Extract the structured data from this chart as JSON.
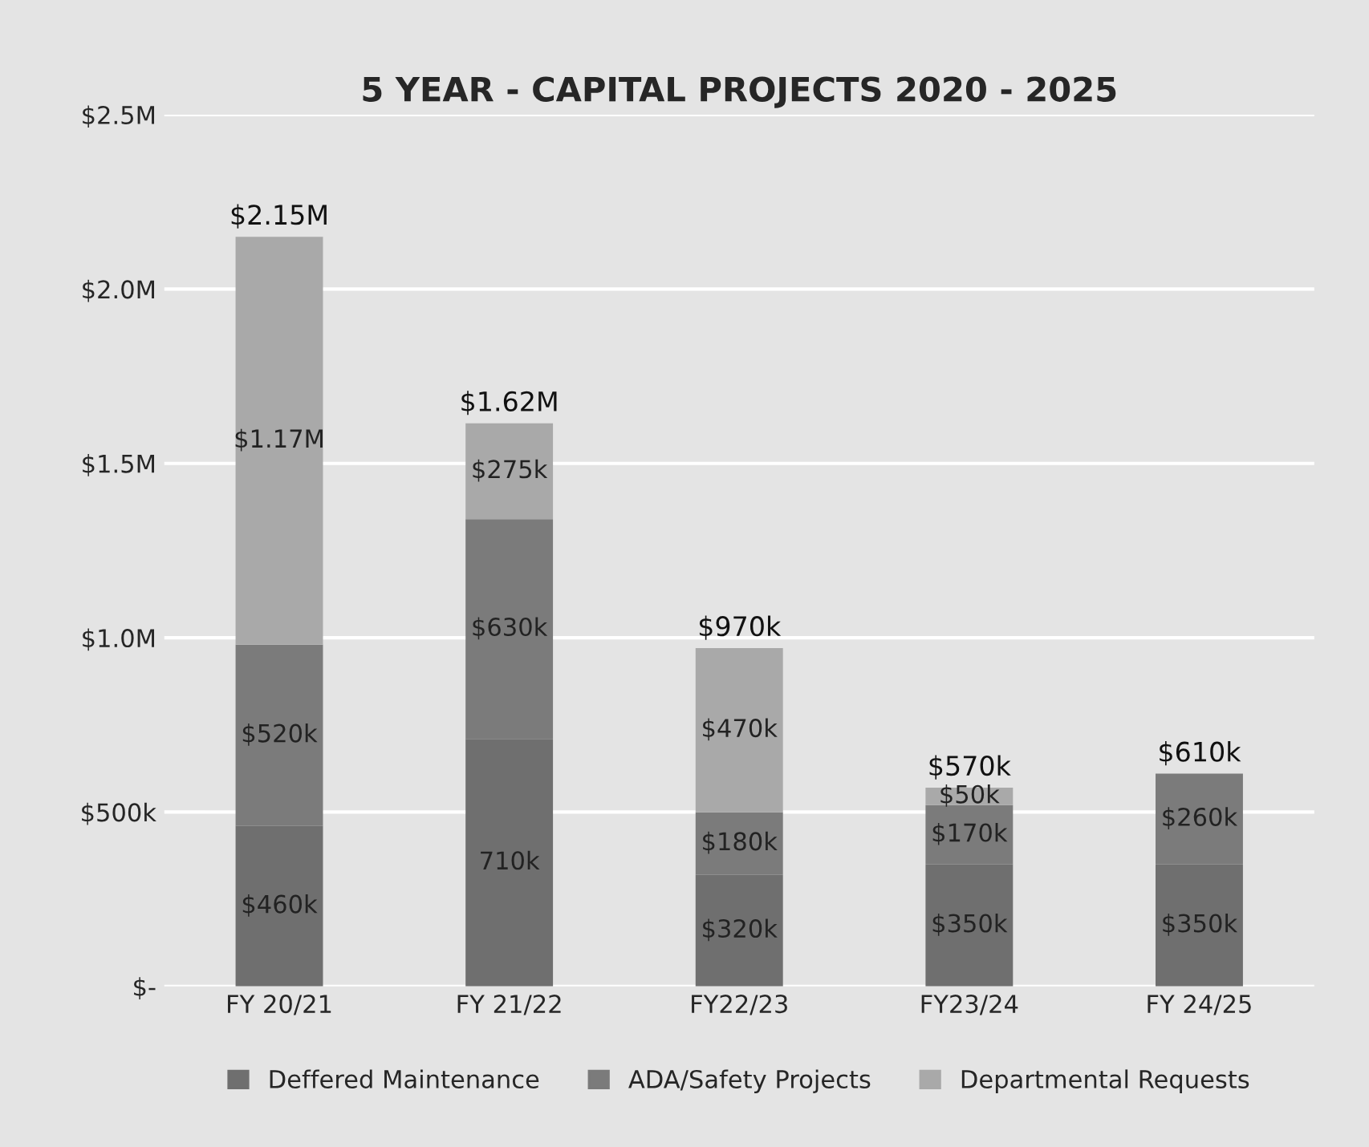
{
  "chart_data": {
    "type": "bar",
    "title": "5 YEAR - CAPITAL PROJECTS 2020 - 2025",
    "stacked": true,
    "categories": [
      "FY 20/21",
      "FY 21/22",
      "FY22/23",
      "FY23/24",
      "FY 24/25"
    ],
    "series": [
      {
        "name": "Deffered Maintenance",
        "color": "#6f6f6f",
        "values": [
          460000,
          710000,
          320000,
          350000,
          350000
        ],
        "value_labels": [
          "$460k",
          "710k",
          "$320k",
          "$350k",
          "$350k"
        ]
      },
      {
        "name": "ADA/Safety Projects",
        "color": "#7b7b7b",
        "values": [
          520000,
          630000,
          180000,
          170000,
          260000
        ],
        "value_labels": [
          "$520k",
          "$630k",
          "$180k",
          "$170k",
          "$260k"
        ]
      },
      {
        "name": "Departmental Requests",
        "color": "#a9a9a9",
        "values": [
          1170000,
          275000,
          470000,
          50000,
          null
        ],
        "value_labels": [
          "$1.17M",
          "$275k",
          "$470k",
          "$50k",
          null
        ]
      }
    ],
    "totals": [
      "$2.15M",
      "$1.62M",
      "$970k",
      "$570k",
      "$610k"
    ],
    "ylim": [
      0,
      2500000
    ],
    "yticks": [
      {
        "value": 0,
        "label": "$-"
      },
      {
        "value": 500000,
        "label": "$500k"
      },
      {
        "value": 1000000,
        "label": "$1.0M"
      },
      {
        "value": 1500000,
        "label": "$1.5M"
      },
      {
        "value": 2000000,
        "label": "$2.0M"
      },
      {
        "value": 2500000,
        "label": "$2.5M"
      }
    ],
    "grid": "y",
    "legend": "bottom"
  }
}
